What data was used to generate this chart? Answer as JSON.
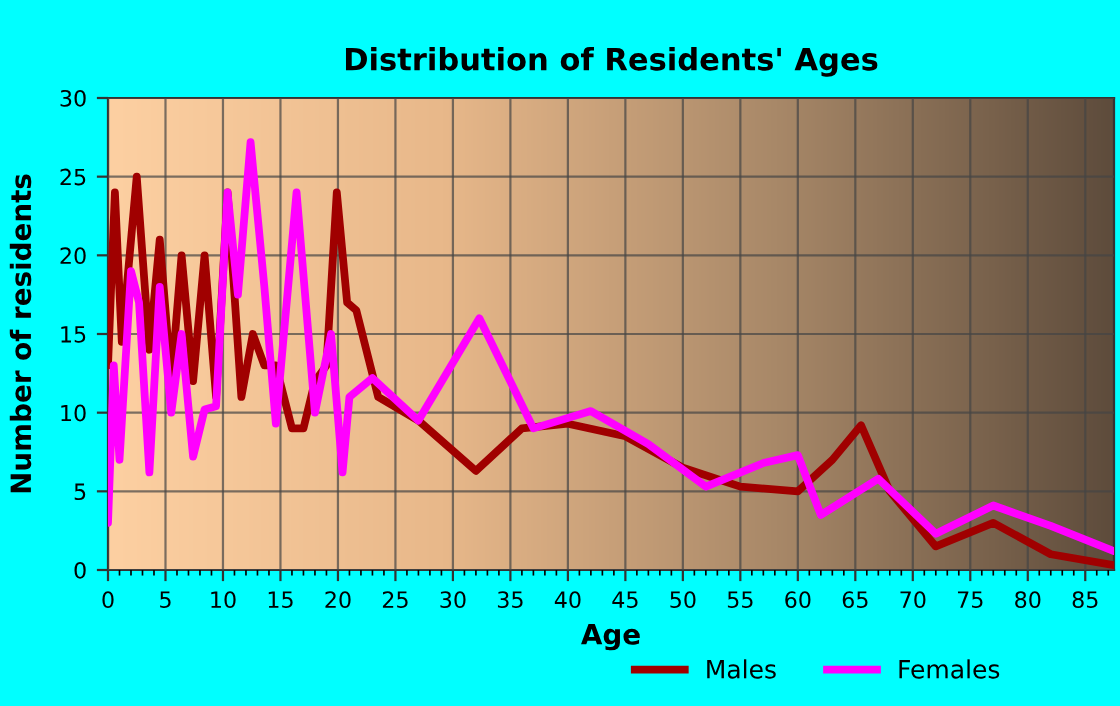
{
  "chart_data": {
    "type": "line",
    "title": "Distribution of Residents' Ages",
    "xlabel": "Age",
    "ylabel": "Number of residents",
    "xlim": [
      0,
      87.5
    ],
    "xticks": [
      0,
      5,
      10,
      15,
      20,
      25,
      30,
      35,
      40,
      45,
      50,
      55,
      60,
      65,
      70,
      75,
      80,
      85
    ],
    "ylim": [
      0,
      30
    ],
    "yticks": [
      0,
      5,
      10,
      15,
      20,
      25,
      30
    ],
    "grid": true,
    "legend": "bottom",
    "line_style": "solid",
    "series": [
      {
        "name": "Males",
        "color": "#a00000",
        "x": [
          0,
          0.6,
          1.2,
          2.5,
          3.6,
          4.5,
          5.5,
          6.4,
          7.4,
          8.4,
          9.4,
          10.4,
          11.6,
          12.6,
          13.6,
          14.6,
          16,
          17,
          18,
          19,
          19.9,
          20.8,
          21.6,
          23.5,
          27,
          32,
          36,
          40,
          45,
          50,
          55,
          60,
          63,
          65.5,
          68,
          72,
          77,
          82,
          87.5
        ],
        "values": [
          13,
          24,
          14.5,
          25,
          14,
          21,
          12,
          20,
          12,
          20,
          11,
          24,
          11,
          15,
          13,
          13,
          9,
          9,
          12,
          13,
          24,
          17,
          16.5,
          11,
          9.5,
          6.3,
          9,
          9.3,
          8.5,
          6.5,
          5.3,
          5,
          7,
          9.2,
          5,
          1.5,
          3,
          1,
          0.3
        ]
      },
      {
        "name": "Females",
        "color": "#ff00ff",
        "x": [
          0,
          0.5,
          1,
          2,
          2.7,
          3.6,
          4.5,
          5.5,
          6.4,
          7.4,
          8.4,
          9.4,
          10.4,
          11.3,
          12.4,
          13.6,
          14.6,
          16.4,
          18,
          19.4,
          20.4,
          21,
          23,
          27,
          32.3,
          37,
          42,
          47,
          52,
          57,
          60,
          62,
          67,
          72,
          77,
          82,
          87.5
        ],
        "values": [
          3,
          13,
          7,
          19,
          17,
          6.2,
          18,
          10,
          15,
          7.2,
          10.2,
          10.4,
          24,
          17.5,
          27.2,
          18,
          9.3,
          24,
          10,
          15,
          6.2,
          11,
          12.2,
          9.5,
          16,
          9,
          10.1,
          8,
          5.3,
          6.8,
          7.3,
          3.5,
          5.8,
          2.3,
          4.1,
          2.8,
          1.2
        ]
      }
    ]
  }
}
